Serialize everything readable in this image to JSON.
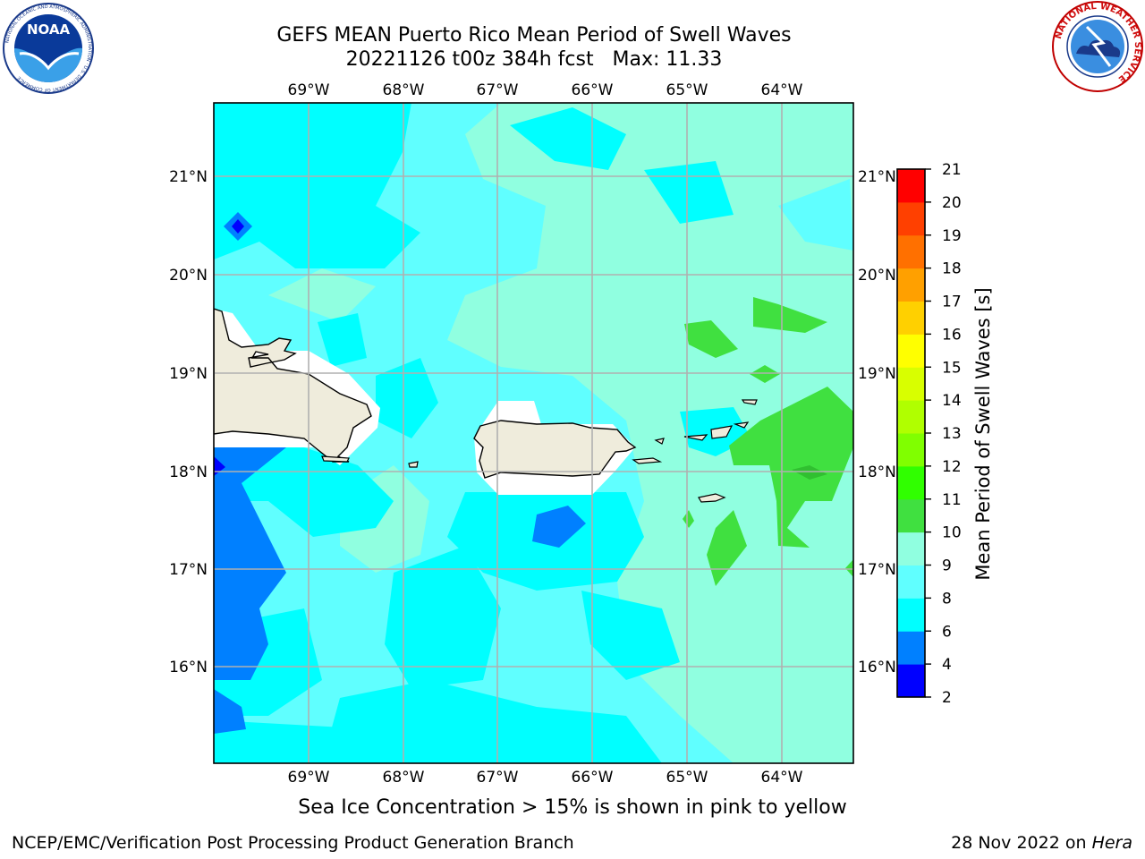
{
  "header": {
    "title_line1": "GEFS MEAN Puerto Rico Mean Period of Swell Waves",
    "title_line2": "20221126 t00z 384h fcst   Max: 11.33"
  },
  "logos": {
    "left": "NOAA",
    "left_ring_text": "NATIONAL OCEANIC AND ATMOSPHERIC ADMINISTRATION · U.S. DEPARTMENT OF COMMERCE",
    "right_ring_text": "NATIONAL WEATHER SERVICE"
  },
  "map": {
    "lon_labels": [
      "69°W",
      "68°W",
      "67°W",
      "66°W",
      "65°W",
      "64°W"
    ],
    "lat_labels": [
      "21°N",
      "20°N",
      "19°N",
      "18°N",
      "17°N",
      "16°N"
    ],
    "gridlines": true
  },
  "colorbar": {
    "label": "Mean Period of Swell Waves [s]",
    "ticks": [
      "2",
      "4",
      "6",
      "8",
      "9",
      "10",
      "11",
      "12",
      "13",
      "14",
      "15",
      "16",
      "17",
      "18",
      "19",
      "20",
      "21"
    ],
    "colors": [
      "#0000ff",
      "#0080ff",
      "#00ffff",
      "#60ffff",
      "#90ffe0",
      "#40e040",
      "#30ff00",
      "#80ff00",
      "#b0ff00",
      "#d8ff00",
      "#ffff00",
      "#ffd000",
      "#ffa000",
      "#ff7000",
      "#ff4000",
      "#ff0000"
    ]
  },
  "caption": "Sea Ice Concentration > 15% is shown in pink to yellow",
  "footer": {
    "left": "NCEP/EMC/Verification Post Processing Product Generation Branch",
    "date": "28 Nov 2022 on ",
    "host": "Hera"
  }
}
